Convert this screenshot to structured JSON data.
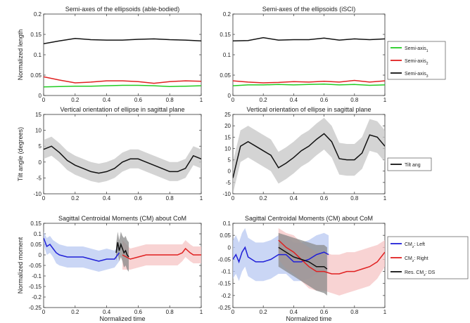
{
  "colors": {
    "green": "#22cc22",
    "red": "#e02020",
    "black": "#111111",
    "blue": "#2020d8",
    "blue_band": "#b8c8f2",
    "red_band": "#f6c4c4",
    "gray_band": "#c6c6c6",
    "black_band": "#8a8a8a"
  },
  "chart_data": [
    {
      "type": "line",
      "title": "Semi-axes of the ellipsoids (able-bodied)",
      "xlabel": "",
      "ylabel": "Normalized length",
      "xlim": [
        0,
        1
      ],
      "ylim": [
        0,
        0.2
      ],
      "xticks": [
        "0",
        "0.2",
        "0.4",
        "0.6",
        "0.8",
        "1"
      ],
      "yticks": [
        "0",
        "0.05",
        "0.1",
        "0.15",
        "0.2"
      ],
      "x": [
        0,
        0.1,
        0.2,
        0.3,
        0.4,
        0.5,
        0.6,
        0.7,
        0.8,
        0.9,
        1.0
      ],
      "series": [
        {
          "name": "",
          "color": "green",
          "values": [
            0.021,
            0.022,
            0.023,
            0.023,
            0.024,
            0.025,
            0.025,
            0.024,
            0.022,
            0.023,
            0.024
          ]
        },
        {
          "name": "",
          "color": "red",
          "values": [
            0.046,
            0.038,
            0.031,
            0.033,
            0.036,
            0.036,
            0.034,
            0.03,
            0.034,
            0.036,
            0.035
          ]
        },
        {
          "name": "",
          "color": "black",
          "values": [
            0.127,
            0.134,
            0.14,
            0.137,
            0.136,
            0.136,
            0.138,
            0.139,
            0.137,
            0.136,
            0.134
          ]
        }
      ]
    },
    {
      "type": "line",
      "title": "Semi-axes of the ellipsoids (iSCI)",
      "xlabel": "",
      "ylabel": "",
      "xlim": [
        0,
        1
      ],
      "ylim": [
        0,
        0.2
      ],
      "xticks": [
        "0",
        "0.2",
        "0.4",
        "0.6",
        "0.8",
        "1"
      ],
      "yticks": [
        "0",
        "0.05",
        "0.1",
        "0.15",
        "0.2"
      ],
      "x": [
        0,
        0.1,
        0.2,
        0.3,
        0.4,
        0.5,
        0.6,
        0.7,
        0.8,
        0.9,
        1.0
      ],
      "series": [
        {
          "name": "Semi-axis",
          "subscript": "1",
          "color": "green",
          "values": [
            0.024,
            0.026,
            0.026,
            0.027,
            0.026,
            0.027,
            0.028,
            0.026,
            0.027,
            0.025,
            0.026
          ]
        },
        {
          "name": "Semi-axis",
          "subscript": "2",
          "color": "red",
          "values": [
            0.036,
            0.033,
            0.031,
            0.032,
            0.034,
            0.033,
            0.035,
            0.033,
            0.037,
            0.033,
            0.036
          ]
        },
        {
          "name": "Semi-axis",
          "subscript": "3",
          "color": "black",
          "values": [
            0.134,
            0.135,
            0.142,
            0.136,
            0.137,
            0.137,
            0.141,
            0.136,
            0.139,
            0.137,
            0.139
          ]
        }
      ],
      "legend": "right"
    },
    {
      "type": "line",
      "title": "Vertical orientation of ellipse in sagittal plane",
      "xlabel": "",
      "ylabel": "Tilt angle (degrees)",
      "xlim": [
        0,
        1
      ],
      "ylim": [
        -10,
        15
      ],
      "xticks": [
        "0",
        "0.2",
        "0.4",
        "0.6",
        "0.8",
        "1"
      ],
      "yticks": [
        "-10",
        "-5",
        "0",
        "5",
        "10",
        "15"
      ],
      "x": [
        0,
        0.05,
        0.1,
        0.15,
        0.2,
        0.25,
        0.3,
        0.35,
        0.4,
        0.45,
        0.5,
        0.55,
        0.6,
        0.65,
        0.7,
        0.75,
        0.8,
        0.85,
        0.9,
        0.95,
        1.0
      ],
      "series": [
        {
          "name": "",
          "color": "black",
          "band": "gray_band",
          "values": [
            4.0,
            5.0,
            3.0,
            0.5,
            -1.0,
            -2.0,
            -3.0,
            -3.5,
            -3.0,
            -2.0,
            0.0,
            1.0,
            1.0,
            0.0,
            -1.0,
            -2.0,
            -3.0,
            -3.0,
            -2.0,
            2.0,
            1.0
          ],
          "lower": [
            1.0,
            2.0,
            0.0,
            -2.5,
            -4.0,
            -5.0,
            -6.0,
            -6.5,
            -6.0,
            -5.0,
            -3.0,
            -2.0,
            -2.0,
            -3.0,
            -4.0,
            -5.0,
            -6.0,
            -6.0,
            -5.0,
            -1.0,
            -2.0
          ],
          "upper": [
            7.0,
            8.0,
            6.0,
            3.5,
            2.0,
            1.0,
            0.0,
            -0.5,
            0.0,
            1.0,
            3.0,
            4.0,
            4.0,
            3.0,
            2.0,
            1.0,
            0.0,
            0.0,
            1.0,
            5.0,
            4.0
          ]
        }
      ]
    },
    {
      "type": "line",
      "title": "Vertical orientation of ellipse in sagittal plane",
      "xlabel": "",
      "ylabel": "",
      "xlim": [
        0,
        1
      ],
      "ylim": [
        -10,
        25
      ],
      "xticks": [
        "0",
        "0.2",
        "0.4",
        "0.6",
        "0.8",
        "1"
      ],
      "yticks": [
        "-10",
        "-5",
        "0",
        "5",
        "10",
        "15",
        "20",
        "25"
      ],
      "x": [
        0,
        0.05,
        0.1,
        0.15,
        0.2,
        0.25,
        0.3,
        0.35,
        0.4,
        0.45,
        0.5,
        0.55,
        0.6,
        0.65,
        0.7,
        0.75,
        0.8,
        0.85,
        0.9,
        0.95,
        1.0
      ],
      "series": [
        {
          "name": "Tilt ang",
          "color": "black",
          "band": "gray_band",
          "values": [
            -3.0,
            11.0,
            13.0,
            11.0,
            9.0,
            7.0,
            1.5,
            3.5,
            6.0,
            9.0,
            11.0,
            14.0,
            16.5,
            13.0,
            5.5,
            5.0,
            5.0,
            8.0,
            16.0,
            15.0,
            11.0
          ],
          "lower": [
            -10.0,
            4.0,
            6.0,
            4.0,
            2.0,
            0.0,
            -5.5,
            -3.5,
            -1.0,
            2.0,
            4.0,
            7.0,
            9.5,
            6.0,
            -1.5,
            -2.0,
            -2.0,
            1.0,
            9.0,
            8.0,
            4.0
          ],
          "upper": [
            4.0,
            18.0,
            20.0,
            18.0,
            16.0,
            14.0,
            8.5,
            10.5,
            13.0,
            16.0,
            18.0,
            21.0,
            23.5,
            20.0,
            12.5,
            12.0,
            12.0,
            15.0,
            23.0,
            22.0,
            18.0
          ]
        }
      ],
      "legend": "right"
    },
    {
      "type": "line",
      "title": "Sagittal Centroidal Moments (CM) about CoM",
      "xlabel": "Normalized time",
      "ylabel": "Normalized moment",
      "xlim": [
        0,
        1
      ],
      "ylim": [
        -0.25,
        0.15
      ],
      "xticks": [
        "0",
        "0.2",
        "0.4",
        "0.6",
        "0.8",
        "1"
      ],
      "yticks": [
        "-0.25",
        "-0.2",
        "-0.15",
        "-0.1",
        "-0.05",
        "0",
        "0.05",
        "0.1",
        "0.15"
      ],
      "series": [
        {
          "name": "",
          "color": "blue",
          "band": "blue_band",
          "x": [
            0,
            0.02,
            0.04,
            0.06,
            0.08,
            0.1,
            0.15,
            0.2,
            0.25,
            0.3,
            0.35,
            0.4,
            0.45,
            0.48
          ],
          "values": [
            0.08,
            0.04,
            0.05,
            0.03,
            0.01,
            0.0,
            -0.01,
            -0.01,
            -0.01,
            -0.02,
            -0.03,
            -0.02,
            -0.02,
            0.01
          ],
          "lower": [
            0.05,
            0.0,
            0.01,
            -0.01,
            -0.04,
            -0.05,
            -0.06,
            -0.06,
            -0.06,
            -0.07,
            -0.08,
            -0.07,
            -0.06,
            -0.03
          ],
          "upper": [
            0.11,
            0.08,
            0.09,
            0.07,
            0.06,
            0.05,
            0.04,
            0.04,
            0.04,
            0.03,
            0.02,
            0.03,
            0.02,
            0.05
          ]
        },
        {
          "name": "",
          "color": "red",
          "band": "red_band",
          "x": [
            0.5,
            0.55,
            0.6,
            0.65,
            0.7,
            0.75,
            0.8,
            0.85,
            0.88,
            0.9,
            0.93,
            0.95,
            1.0
          ],
          "values": [
            0.0,
            -0.02,
            -0.01,
            0.0,
            0.0,
            0.0,
            0.0,
            0.0,
            0.01,
            0.03,
            0.01,
            0.0,
            0.0
          ],
          "lower": [
            -0.07,
            -0.07,
            -0.06,
            -0.05,
            -0.05,
            -0.05,
            -0.05,
            -0.05,
            -0.03,
            -0.01,
            -0.03,
            -0.04,
            -0.04
          ],
          "upper": [
            0.07,
            0.03,
            0.04,
            0.05,
            0.05,
            0.05,
            0.05,
            0.05,
            0.05,
            0.07,
            0.05,
            0.04,
            0.04
          ]
        },
        {
          "name": "",
          "color": "black",
          "band": "black_band",
          "x": [
            0.46,
            0.47,
            0.48,
            0.49,
            0.5,
            0.51,
            0.52,
            0.53,
            0.54
          ],
          "values": [
            0.01,
            0.06,
            0.02,
            0.05,
            0.03,
            0.01,
            0.02,
            0.0,
            -0.01
          ],
          "lower": [
            -0.03,
            0.01,
            -0.03,
            -0.01,
            -0.03,
            -0.06,
            -0.05,
            -0.07,
            -0.08
          ],
          "upper": [
            0.05,
            0.11,
            0.07,
            0.11,
            0.09,
            0.08,
            0.09,
            0.07,
            0.06
          ]
        }
      ]
    },
    {
      "type": "line",
      "title": "Sagittal Centroidal Moments (CM) about CoM",
      "xlabel": "Normalized time",
      "ylabel": "",
      "xlim": [
        0,
        1
      ],
      "ylim": [
        -0.25,
        0.1
      ],
      "xticks": [
        "0",
        "0.2",
        "0.4",
        "0.6",
        "0.8",
        "1"
      ],
      "yticks": [
        "-0.25",
        "-0.2",
        "-0.15",
        "-0.1",
        "-0.05",
        "0",
        "0.05",
        "0.1"
      ],
      "series": [
        {
          "name": "CM",
          "subscript": "z",
          "suffix": ": Left",
          "color": "blue",
          "band": "blue_band",
          "x": [
            0,
            0.02,
            0.04,
            0.06,
            0.08,
            0.1,
            0.15,
            0.2,
            0.25,
            0.3,
            0.35,
            0.4,
            0.45,
            0.5,
            0.55,
            0.6,
            0.63
          ],
          "values": [
            -0.05,
            -0.03,
            -0.06,
            -0.02,
            0.0,
            -0.04,
            -0.06,
            -0.06,
            -0.05,
            -0.03,
            -0.03,
            -0.06,
            -0.06,
            -0.05,
            -0.03,
            -0.02,
            -0.03
          ],
          "lower": [
            -0.13,
            -0.11,
            -0.14,
            -0.1,
            -0.08,
            -0.12,
            -0.14,
            -0.14,
            -0.13,
            -0.11,
            -0.11,
            -0.14,
            -0.14,
            -0.13,
            -0.11,
            -0.1,
            -0.11
          ],
          "upper": [
            0.03,
            0.05,
            0.02,
            0.06,
            0.08,
            0.04,
            0.02,
            0.02,
            0.03,
            0.05,
            0.05,
            0.02,
            0.02,
            0.03,
            0.05,
            0.06,
            0.05
          ]
        },
        {
          "name": "CM",
          "subscript": "z",
          "suffix": ": Right",
          "color": "red",
          "band": "red_band",
          "x": [
            0.3,
            0.35,
            0.4,
            0.45,
            0.5,
            0.55,
            0.6,
            0.65,
            0.7,
            0.75,
            0.8,
            0.85,
            0.9,
            0.95,
            1.0
          ],
          "values": [
            0.03,
            0.0,
            -0.02,
            -0.05,
            -0.08,
            -0.1,
            -0.1,
            -0.11,
            -0.11,
            -0.1,
            -0.1,
            -0.09,
            -0.08,
            -0.06,
            -0.02
          ],
          "lower": [
            -0.05,
            -0.09,
            -0.11,
            -0.14,
            -0.17,
            -0.18,
            -0.18,
            -0.19,
            -0.2,
            -0.19,
            -0.18,
            -0.17,
            -0.16,
            -0.13,
            -0.08
          ],
          "upper": [
            0.08,
            0.06,
            0.05,
            0.02,
            0.0,
            -0.02,
            -0.02,
            -0.03,
            -0.03,
            -0.02,
            -0.02,
            -0.01,
            0.0,
            0.01,
            0.03
          ]
        },
        {
          "name": "Res. CM",
          "subscript": "z",
          "suffix": ": DS",
          "color": "black",
          "band": "black_band",
          "x": [
            0.3,
            0.35,
            0.4,
            0.45,
            0.5,
            0.55,
            0.6,
            0.62
          ],
          "values": [
            0.0,
            -0.02,
            -0.04,
            -0.05,
            -0.06,
            -0.08,
            -0.08,
            -0.09
          ],
          "lower": [
            -0.08,
            -0.1,
            -0.12,
            -0.14,
            -0.16,
            -0.18,
            -0.19,
            -0.2
          ],
          "upper": [
            0.06,
            0.05,
            0.04,
            0.03,
            0.02,
            0.01,
            0.01,
            0.0
          ]
        }
      ],
      "legend": "right"
    }
  ]
}
